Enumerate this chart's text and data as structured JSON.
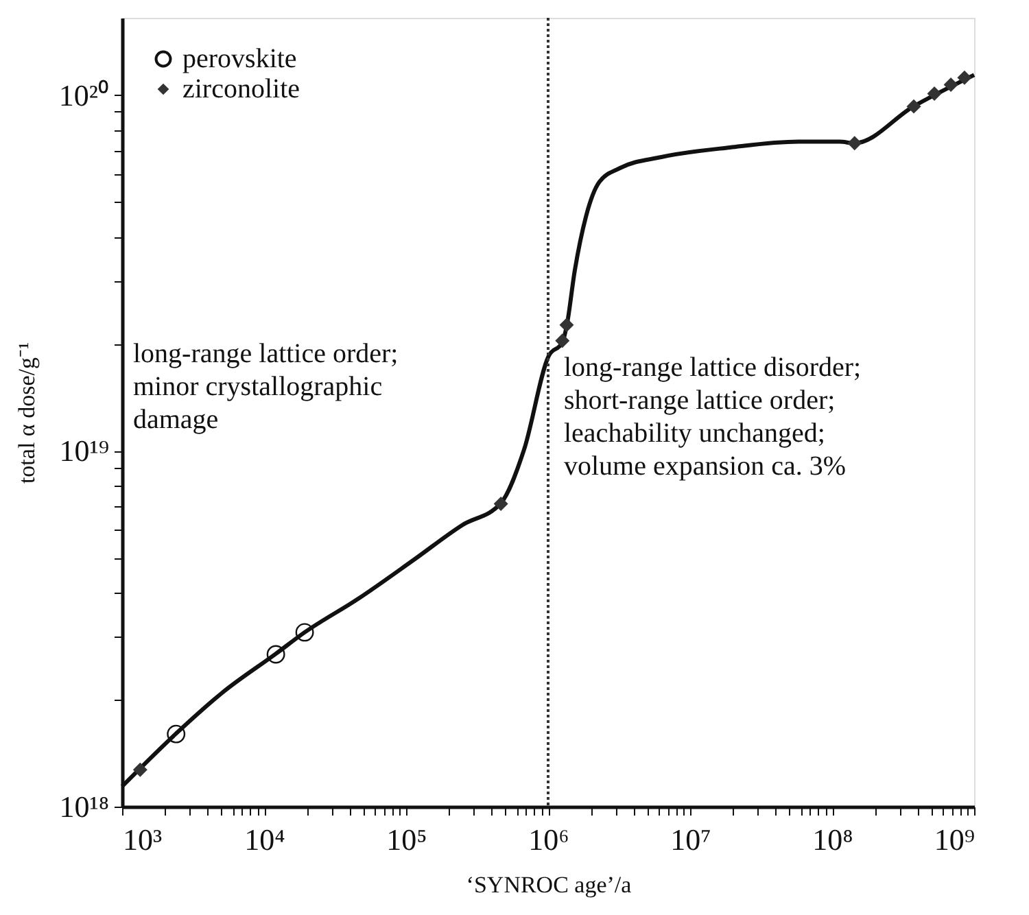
{
  "chart_data": {
    "type": "line",
    "xlabel": "‘SYNROC age’/a",
    "ylabel": "total α dose/g⁻¹",
    "log": "xy",
    "grid": false,
    "legend": "top left",
    "xlim": [
      1000,
      1000000000
    ],
    "ylim": [
      1e+18,
      1.65e+20
    ],
    "xticks": [
      {
        "value": 1000,
        "label": "10³"
      },
      {
        "value": 2000,
        "label": null
      },
      {
        "value": 3000,
        "label": null
      },
      {
        "value": 4000,
        "label": null
      },
      {
        "value": 5000,
        "label": null
      },
      {
        "value": 6000,
        "label": null
      },
      {
        "value": 7000,
        "label": null
      },
      {
        "value": 8000,
        "label": null
      },
      {
        "value": 9000,
        "label": null
      },
      {
        "value": 10000,
        "label": "10⁴"
      },
      {
        "value": 20000,
        "label": null
      },
      {
        "value": 30000,
        "label": null
      },
      {
        "value": 40000,
        "label": null
      },
      {
        "value": 50000,
        "label": null
      },
      {
        "value": 60000,
        "label": null
      },
      {
        "value": 70000,
        "label": null
      },
      {
        "value": 80000,
        "label": null
      },
      {
        "value": 90000,
        "label": null
      },
      {
        "value": 100000,
        "label": "10⁵"
      },
      {
        "value": 200000,
        "label": null
      },
      {
        "value": 300000,
        "label": null
      },
      {
        "value": 400000,
        "label": null
      },
      {
        "value": 500000,
        "label": null
      },
      {
        "value": 600000,
        "label": null
      },
      {
        "value": 700000,
        "label": null
      },
      {
        "value": 800000,
        "label": null
      },
      {
        "value": 900000,
        "label": null
      },
      {
        "value": 1000000,
        "label": "10⁶"
      },
      {
        "value": 2000000,
        "label": null
      },
      {
        "value": 3000000,
        "label": null
      },
      {
        "value": 4000000,
        "label": null
      },
      {
        "value": 5000000,
        "label": null
      },
      {
        "value": 6000000,
        "label": null
      },
      {
        "value": 7000000,
        "label": null
      },
      {
        "value": 8000000,
        "label": null
      },
      {
        "value": 9000000,
        "label": null
      },
      {
        "value": 10000000,
        "label": "10⁷"
      },
      {
        "value": 20000000,
        "label": null
      },
      {
        "value": 30000000,
        "label": null
      },
      {
        "value": 40000000,
        "label": null
      },
      {
        "value": 50000000,
        "label": null
      },
      {
        "value": 60000000,
        "label": null
      },
      {
        "value": 70000000,
        "label": null
      },
      {
        "value": 80000000,
        "label": null
      },
      {
        "value": 90000000,
        "label": null
      },
      {
        "value": 100000000,
        "label": "10⁸"
      },
      {
        "value": 200000000,
        "label": null
      },
      {
        "value": 300000000,
        "label": null
      },
      {
        "value": 400000000,
        "label": null
      },
      {
        "value": 500000000,
        "label": null
      },
      {
        "value": 600000000,
        "label": null
      },
      {
        "value": 700000000,
        "label": null
      },
      {
        "value": 800000000,
        "label": null
      },
      {
        "value": 900000000,
        "label": null
      },
      {
        "value": 1000000000,
        "label": "10⁹"
      }
    ],
    "yticks": [
      {
        "value": 1e+18,
        "label": "10¹⁸"
      },
      {
        "value": 2e+18,
        "label": null
      },
      {
        "value": 3e+18,
        "label": null
      },
      {
        "value": 4e+18,
        "label": null
      },
      {
        "value": 5e+18,
        "label": null
      },
      {
        "value": 6e+18,
        "label": null
      },
      {
        "value": 7e+18,
        "label": null
      },
      {
        "value": 8e+18,
        "label": null
      },
      {
        "value": 9e+18,
        "label": null
      },
      {
        "value": 1e+19,
        "label": "10¹⁹"
      },
      {
        "value": 2e+19,
        "label": null
      },
      {
        "value": 3e+19,
        "label": null
      },
      {
        "value": 4e+19,
        "label": null
      },
      {
        "value": 5e+19,
        "label": null
      },
      {
        "value": 6e+19,
        "label": null
      },
      {
        "value": 7e+19,
        "label": null
      },
      {
        "value": 8e+19,
        "label": null
      },
      {
        "value": 9e+19,
        "label": null
      },
      {
        "value": 1e+20,
        "label": "10²⁰"
      }
    ],
    "series": [
      {
        "color": "#111111",
        "line_style": "solid",
        "x": [
          1000,
          2380,
          5070,
          12100,
          19300,
          46900,
          114000,
          249000,
          465000,
          678000,
          1010000,
          1260000,
          1350000,
          1540000,
          1850000,
          2300000,
          3210000,
          6270000,
          19100000,
          57900000,
          113000000,
          144000000,
          376000000,
          875000000,
          1000000000
        ],
        "values": [
          1.14e+18,
          1.6e+18,
          2.09e+18,
          2.69e+18,
          3.09e+18,
          3.86e+18,
          4.95e+18,
          6.19e+18,
          7.13e+18,
          1.01e+19,
          1.85e+19,
          2.02e+19,
          2.24e+19,
          3.21e+19,
          4.57e+19,
          5.71e+19,
          6.24e+19,
          6.7e+19,
          7.13e+19,
          7.4e+19,
          7.4e+19,
          7.33e+19,
          9.31e+19,
          1.11e+20,
          1.14e+20
        ]
      },
      {
        "type": "scatter",
        "name": "perovskite",
        "color": "#111111",
        "marker": "circle",
        "x": [
          2400,
          12100,
          19300
        ],
        "values": [
          1.6e+18,
          2.68e+18,
          3.09e+18
        ]
      },
      {
        "type": "scatter",
        "name": "zirconolite",
        "color": "#333333",
        "marker": "diamond",
        "x": [
          1340,
          465000,
          1260000,
          1350000,
          144000000,
          376000000,
          525000000,
          686000000,
          855000000
        ],
        "values": [
          1.27e+18,
          7.1e+18,
          2.04e+19,
          2.26e+19,
          7.33e+19,
          9.3e+19,
          1.01e+20,
          1.07e+20,
          1.12e+20
        ]
      }
    ],
    "ref_lines": [
      {
        "axis": "x",
        "value": 1000000,
        "color": "#333333",
        "line_style": "dotted"
      }
    ],
    "annotations": [
      "long-range lattice order;\nminor crystallographic\ndamage",
      "long-range lattice disorder;\nshort-range lattice order;\nleachability unchanged;\nvolume expansion ca. 3%"
    ]
  }
}
